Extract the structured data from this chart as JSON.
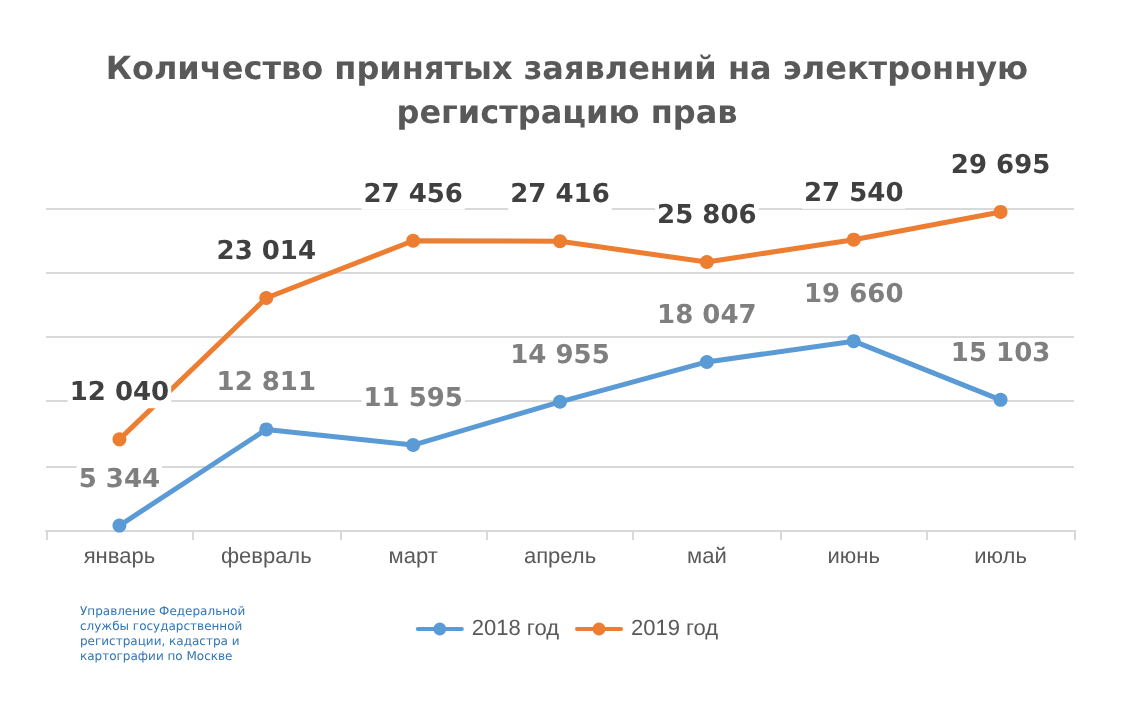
{
  "chart_data": {
    "type": "line",
    "title": "Количество принятых заявлений на электронную\nрегистрацию прав",
    "categories": [
      "январь",
      "февраль",
      "март",
      "апрель",
      "май",
      "июнь",
      "июль"
    ],
    "series": [
      {
        "name": "2018 год",
        "color": "#5b9bd5",
        "values": [
          5344,
          12811,
          11595,
          14955,
          18047,
          19660,
          15103
        ],
        "value_labels": [
          "5 344",
          "12 811",
          "11 595",
          "14 955",
          "18 047",
          "19 660",
          "15 103"
        ]
      },
      {
        "name": "2019 год",
        "color": "#ed7d31",
        "values": [
          12040,
          23014,
          27456,
          27416,
          25806,
          27540,
          29695
        ],
        "value_labels": [
          "12 040",
          "23 014",
          "27 456",
          "27 416",
          "25 806",
          "27 540",
          "29 695"
        ]
      }
    ],
    "ylim": [
      5000,
      30000
    ],
    "yticks": [
      {
        "value": 5000,
        "label": null
      },
      {
        "value": 10000,
        "label": null
      },
      {
        "value": 15000,
        "label": null
      },
      {
        "value": 20000,
        "label": null
      },
      {
        "value": 25000,
        "label": null
      },
      {
        "value": 30000,
        "label": null
      }
    ],
    "tick_labels": "x",
    "grid": "y",
    "legend": "bottom",
    "marker": "circle",
    "line_style": "solid",
    "annotations": [
      "Управление Федеральной службы государственной регистрации, кадастра и картографии по Москве"
    ]
  }
}
